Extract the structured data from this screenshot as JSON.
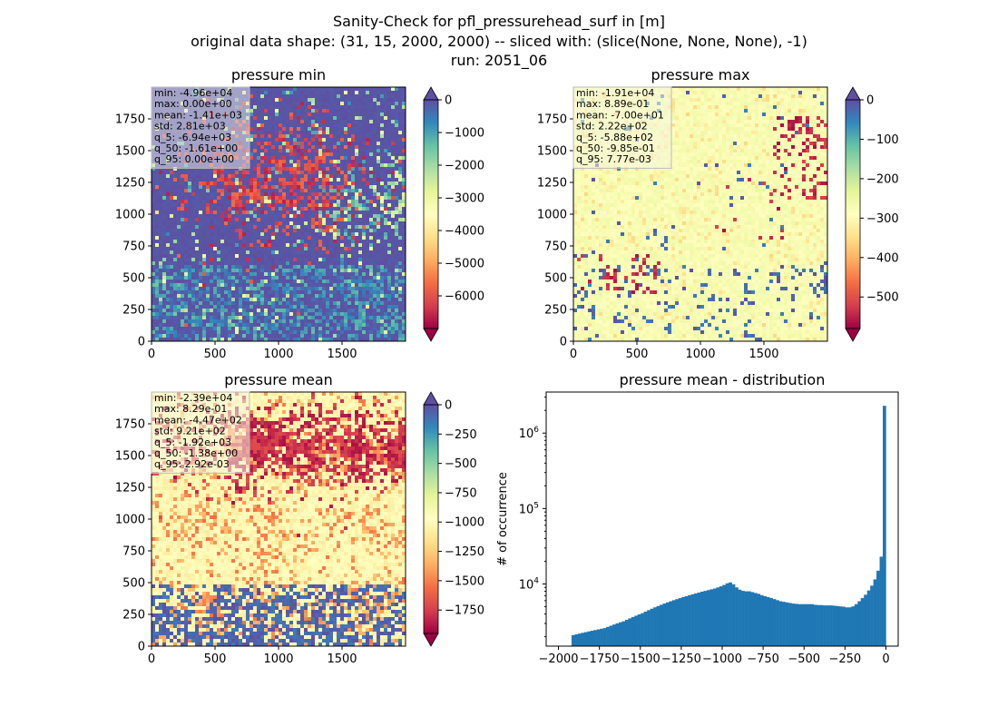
{
  "figure": {
    "title_line1": "Sanity-Check for pfl_pressurehead_surf in [m]",
    "title_line2": "original data shape: (31, 15, 2000, 2000) -- sliced with: (slice(None, None, None), -1)",
    "title_line3": "run: 2051_06"
  },
  "colormap": "Spectral",
  "chart_data": [
    {
      "type": "heatmap",
      "title": "pressure min",
      "x_ticks": [
        "0",
        "500",
        "1000",
        "1500"
      ],
      "y_ticks": [
        "0",
        "250",
        "500",
        "750",
        "1000",
        "1250",
        "1500",
        "1750"
      ],
      "xlim": [
        0,
        2000
      ],
      "ylim": [
        0,
        2000
      ],
      "colorbar": {
        "range": [
          -7000,
          0
        ],
        "ticks": [
          "0",
          "−1000",
          "−2000",
          "−3000",
          "−4000",
          "−5000",
          "−6000"
        ],
        "extend": "both"
      },
      "stats": [
        "min: -4.96e+04",
        "max: 0.00e+00",
        "mean: -1.41e+03",
        "std: 2.81e+03",
        "q_5: -6.94e+03",
        "q_50: -1.61e+00",
        "q_95: 0.00e+00"
      ]
    },
    {
      "type": "heatmap",
      "title": "pressure max",
      "x_ticks": [
        "0",
        "500",
        "1000",
        "1500"
      ],
      "y_ticks": [
        "0",
        "250",
        "500",
        "750",
        "1000",
        "1250",
        "1500",
        "1750"
      ],
      "xlim": [
        0,
        2000
      ],
      "ylim": [
        0,
        2000
      ],
      "colorbar": {
        "range": [
          -580,
          0
        ],
        "ticks": [
          "0",
          "−100",
          "−200",
          "−300",
          "−400",
          "−500"
        ],
        "extend": "both"
      },
      "stats": [
        "min: -1.91e+04",
        "max: 8.89e-01",
        "mean: -7.00e+01",
        "std: 2.22e+02",
        "q_5: -5.88e+02",
        "q_50: -9.85e-01",
        "q_95: 7.77e-03"
      ]
    },
    {
      "type": "heatmap",
      "title": "pressure mean",
      "x_ticks": [
        "0",
        "500",
        "1000",
        "1500"
      ],
      "y_ticks": [
        "0",
        "250",
        "500",
        "750",
        "1000",
        "1250",
        "1500",
        "1750"
      ],
      "xlim": [
        0,
        2000
      ],
      "ylim": [
        0,
        2000
      ],
      "colorbar": {
        "range": [
          -1950,
          0
        ],
        "ticks": [
          "0",
          "−250",
          "−500",
          "−750",
          "−1000",
          "−1250",
          "−1500",
          "−1750"
        ],
        "extend": "both"
      },
      "stats": [
        "min: -2.39e+04",
        "max: 8.29e-01",
        "mean: -4.47e+02",
        "std: 9.21e+02",
        "q_5: -1.92e+03",
        "q_50: -1.38e+00",
        "q_95: 2.92e-03"
      ]
    },
    {
      "type": "bar",
      "title": "pressure mean - distribution",
      "xlabel": "",
      "ylabel": "# of occurrence",
      "y_scale": "log",
      "xlim": [
        -2075,
        75
      ],
      "ylim": [
        1500,
        3500000
      ],
      "x_ticks": [
        "−2000",
        "−1750",
        "−1500",
        "−1250",
        "−1000",
        "−750",
        "−500",
        "−250",
        "0"
      ],
      "y_ticks": [
        "10^4",
        "10^5",
        "10^6"
      ],
      "color": "#1f77b4",
      "bins": {
        "edges": [
          -1920,
          0
        ],
        "count": 100,
        "values": [
          2100,
          2150,
          2200,
          2250,
          2300,
          2350,
          2400,
          2450,
          2500,
          2550,
          2600,
          2700,
          2800,
          2900,
          3000,
          3100,
          3200,
          3350,
          3500,
          3650,
          3800,
          3950,
          4100,
          4300,
          4500,
          4700,
          4900,
          5100,
          5300,
          5500,
          5700,
          5900,
          6100,
          6300,
          6500,
          6700,
          6900,
          7100,
          7300,
          7500,
          7700,
          7900,
          8100,
          8300,
          8500,
          8700,
          9000,
          9300,
          9700,
          10200,
          10500,
          9900,
          9000,
          8400,
          8100,
          8000,
          8000,
          7800,
          7600,
          7400,
          7100,
          6900,
          6700,
          6500,
          6300,
          6100,
          5900,
          5800,
          5700,
          5600,
          5500,
          5450,
          5400,
          5400,
          5400,
          5400,
          5400,
          5300,
          5250,
          5250,
          5200,
          5200,
          5200,
          5150,
          5100,
          5050,
          5000,
          4900,
          4900,
          5050,
          5400,
          5900,
          6500,
          7200,
          8200,
          9500,
          11500,
          15000,
          23000,
          2300000
        ]
      }
    }
  ]
}
